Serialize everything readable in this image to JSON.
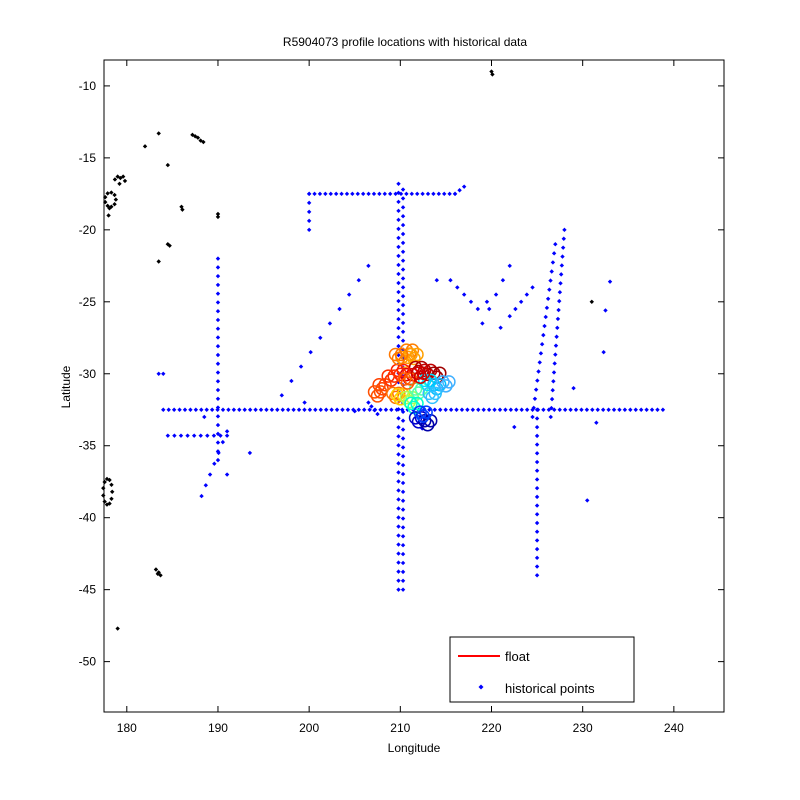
{
  "chart_data": {
    "type": "scatter",
    "title": "R5904073 profile locations with historical data",
    "xlabel": "Longitude",
    "ylabel": "Latitude",
    "xlim": [
      177.5,
      245.5
    ],
    "ylim": [
      -53.5,
      -8.2
    ],
    "xticks": [
      180,
      190,
      200,
      210,
      220,
      230,
      240
    ],
    "yticks": [
      -10,
      -15,
      -20,
      -25,
      -30,
      -35,
      -40,
      -45,
      -50
    ],
    "grid": false,
    "legend": {
      "position": "bottom-right",
      "entries": [
        "float",
        "historical points"
      ]
    },
    "colors": {
      "float": "#ff0000",
      "historical": "#0000ff",
      "other": "#000000"
    },
    "series": [
      {
        "name": "historical points",
        "color": "#0000ff",
        "segments": [
          {
            "from": [
              184,
              -32.5
            ],
            "to": [
              238.8,
              -32.5
            ],
            "n": 93
          },
          {
            "from": [
              200,
              -17.5
            ],
            "to": [
              216,
              -17.5
            ],
            "n": 28
          },
          {
            "from": [
              209.8,
              -16.8
            ],
            "to": [
              209.8,
              -45
            ],
            "n": 46
          },
          {
            "from": [
              210.3,
              -17.2
            ],
            "to": [
              210.3,
              -45
            ],
            "n": 46
          },
          {
            "from": [
              190,
              -22
            ],
            "to": [
              190,
              -36
            ],
            "n": 24
          },
          {
            "from": [
              225,
              -32.5
            ],
            "to": [
              225,
              -44
            ],
            "n": 20
          },
          {
            "from": [
              224.5,
              -33
            ],
            "to": [
              227,
              -21
            ],
            "n": 20
          },
          {
            "from": [
              226.5,
              -33
            ],
            "to": [
              228,
              -20
            ],
            "n": 22
          },
          {
            "from": [
              197,
              -31.5
            ],
            "to": [
              206.5,
              -22.5
            ],
            "n": 10
          },
          {
            "from": [
              216,
              -17.5
            ],
            "to": [
              217,
              -17
            ],
            "n": 3
          },
          {
            "from": [
              200,
              -17.5
            ],
            "to": [
              200,
              -20
            ],
            "n": 5
          },
          {
            "from": [
              184.5,
              -34.3
            ],
            "to": [
              191,
              -34.3
            ],
            "n": 10
          },
          {
            "from": [
              188.2,
              -38.5
            ],
            "to": [
              191,
              -34
            ],
            "n": 7
          },
          {
            "from": [
              222,
              -26
            ],
            "to": [
              224.5,
              -24
            ],
            "n": 5
          },
          {
            "from": [
              219,
              -26.5
            ],
            "to": [
              222,
              -22.5
            ],
            "n": 5
          },
          {
            "from": [
              215.5,
              -23.5
            ],
            "to": [
              218.5,
              -25.5
            ],
            "n": 5
          },
          {
            "from": [
              191,
              -37
            ],
            "to": [
              193.5,
              -35.5
            ],
            "n": 2
          },
          {
            "from": [
              206.5,
              -32
            ],
            "to": [
              207.5,
              -32.8
            ],
            "n": 4
          }
        ],
        "points": [
          [
            183.5,
            -30
          ],
          [
            184,
            -30
          ],
          [
            214,
            -23.5
          ],
          [
            219.5,
            -25
          ],
          [
            221,
            -26.8
          ],
          [
            222.5,
            -33.7
          ],
          [
            230.5,
            -38.8
          ],
          [
            231.5,
            -33.4
          ],
          [
            232.3,
            -28.5
          ],
          [
            232.5,
            -25.6
          ],
          [
            233,
            -23.6
          ],
          [
            229,
            -31
          ],
          [
            199.5,
            -32
          ],
          [
            212.4,
            -33.8
          ],
          [
            205,
            -32.6
          ],
          [
            188.5,
            -33
          ]
        ]
      },
      {
        "name": "",
        "color": "#000000",
        "points": [
          [
            220,
            -9
          ],
          [
            220.1,
            -9.2
          ],
          [
            183.5,
            -13.3
          ],
          [
            182,
            -14.2
          ],
          [
            184.5,
            -15.5
          ],
          [
            183.5,
            -22.2
          ],
          [
            184.5,
            -21
          ],
          [
            184.7,
            -21.1
          ],
          [
            186,
            -18.4
          ],
          [
            186.1,
            -18.6
          ],
          [
            190,
            -18.9
          ],
          [
            190,
            -19.1
          ],
          [
            187.2,
            -13.4
          ],
          [
            187.5,
            -13.5
          ],
          [
            187.8,
            -13.6
          ],
          [
            188.1,
            -13.8
          ],
          [
            188.4,
            -13.9
          ],
          [
            178.7,
            -16.5
          ],
          [
            179,
            -16.3
          ],
          [
            179.3,
            -16.4
          ],
          [
            179.6,
            -16.3
          ],
          [
            179.8,
            -16.6
          ],
          [
            179.2,
            -16.8
          ],
          [
            178,
            -19
          ],
          [
            178.1,
            -18.5
          ],
          [
            179,
            -47.7
          ],
          [
            231,
            -25
          ],
          [
            183.2,
            -43.6
          ],
          [
            183.5,
            -43.8
          ],
          [
            183.7,
            -44
          ],
          [
            183.4,
            -43.9
          ]
        ],
        "rings": [
          {
            "cx": 178.2,
            "cy": -17.9,
            "rx": 0.6,
            "ry": 0.5,
            "n": 9
          },
          {
            "cx": 177.9,
            "cy": -38.2,
            "rx": 0.5,
            "ry": 0.9,
            "n": 11
          }
        ]
      },
      {
        "name": "float",
        "color": "#ff0000",
        "profiles": [
          [
            211,
            -28.5,
            "#ff8000"
          ],
          [
            210.5,
            -29,
            "#ff9900"
          ],
          [
            211.5,
            -28.8,
            "#ffa000"
          ],
          [
            212,
            -29.7,
            "#b00000"
          ],
          [
            213,
            -29.9,
            "#c00000"
          ],
          [
            214,
            -30.1,
            "#a00000"
          ],
          [
            211,
            -30.2,
            "#e00000"
          ],
          [
            210,
            -29.9,
            "#ff2000"
          ],
          [
            209,
            -30.3,
            "#ff3000"
          ],
          [
            208,
            -30.9,
            "#ff4000"
          ],
          [
            207.5,
            -31.4,
            "#ff5000"
          ],
          [
            209.5,
            -31.5,
            "#ff7000"
          ],
          [
            210,
            -31.6,
            "#ffd000"
          ],
          [
            211,
            -31.8,
            "#aaff55"
          ],
          [
            212,
            -31.2,
            "#55ffaa"
          ],
          [
            213,
            -30.6,
            "#00e0ff"
          ],
          [
            214,
            -30.9,
            "#00c0ff"
          ],
          [
            215,
            -30.7,
            "#40b0ff"
          ],
          [
            211.5,
            -32.2,
            "#00ffcc"
          ],
          [
            212,
            -33.2,
            "#0000cc"
          ],
          [
            213,
            -33.4,
            "#0000aa"
          ],
          [
            212.5,
            -32.8,
            "#0040ff"
          ],
          [
            210.8,
            -30.5,
            "#ff6000"
          ],
          [
            209.8,
            -28.8,
            "#ff7700"
          ],
          [
            212.2,
            -30.1,
            "#d00000"
          ],
          [
            213.5,
            -31.5,
            "#30c0ff"
          ]
        ]
      }
    ]
  }
}
